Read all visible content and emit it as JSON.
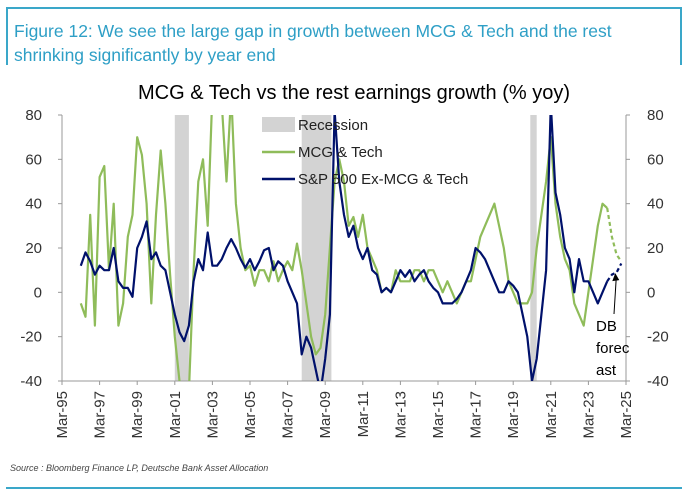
{
  "figure_title": "Figure 12: We see the large gap in growth between MCG & Tech and the rest shrinking significantly by year end",
  "source": "Source : Bloomberg Finance LP, Deutsche Bank Asset Allocation",
  "chart_data": {
    "type": "line",
    "title": "MCG & Tech vs the rest earnings growth (% yoy)",
    "xlabel": "",
    "ylabel": "",
    "ylim": [
      -40,
      80
    ],
    "yticks": [
      "80",
      "60",
      "40",
      "20",
      "0",
      "-20",
      "-40"
    ],
    "ytick_values": [
      80,
      60,
      40,
      20,
      0,
      -20,
      -40
    ],
    "xlim": [
      1995.17,
      2025.17
    ],
    "xticks": [
      "Mar-95",
      "Mar-97",
      "Mar-99",
      "Mar-01",
      "Mar-03",
      "Mar-05",
      "Mar-07",
      "Mar-09",
      "Mar-11",
      "Mar-13",
      "Mar-15",
      "Mar-17",
      "Mar-19",
      "Mar-21",
      "Mar-23",
      "Mar-25"
    ],
    "xtick_values": [
      1995.17,
      1997.17,
      1999.17,
      2001.17,
      2003.17,
      2005.17,
      2007.17,
      2009.17,
      2011.17,
      2013.17,
      2015.17,
      2017.17,
      2019.17,
      2021.17,
      2023.17,
      2025.17
    ],
    "grid": false,
    "legend_position": "top-center",
    "recessions": [
      {
        "start": 2001.17,
        "end": 2001.92
      },
      {
        "start": 2007.92,
        "end": 2009.5
      },
      {
        "start": 2020.08,
        "end": 2020.42
      }
    ],
    "annotation": {
      "text_lines": [
        "DB",
        "forec",
        "ast"
      ],
      "arrow_x": 2024.6,
      "arrow_y": 10
    },
    "series": [
      {
        "name": "Recession",
        "kind": "area",
        "color": "#d3d3d3"
      },
      {
        "name": "MCG & Tech",
        "kind": "line",
        "color": "#8fbc5a",
        "x": [
          1996.17,
          1996.42,
          1996.67,
          1996.92,
          1997.17,
          1997.42,
          1997.67,
          1997.92,
          1998.17,
          1998.42,
          1998.67,
          1998.92,
          1999.17,
          1999.42,
          1999.67,
          1999.92,
          2000.17,
          2000.42,
          2000.67,
          2000.92,
          2001.17,
          2001.42,
          2001.67,
          2001.92,
          2002.17,
          2002.42,
          2002.67,
          2002.92,
          2003.17,
          2003.42,
          2003.67,
          2003.92,
          2004.17,
          2004.42,
          2004.67,
          2004.92,
          2005.17,
          2005.42,
          2005.67,
          2005.92,
          2006.17,
          2006.42,
          2006.67,
          2006.92,
          2007.17,
          2007.42,
          2007.67,
          2007.92,
          2008.17,
          2008.42,
          2008.67,
          2008.92,
          2009.17,
          2009.42,
          2009.67,
          2009.92,
          2010.17,
          2010.42,
          2010.67,
          2010.92,
          2011.17,
          2011.42,
          2011.67,
          2011.92,
          2012.17,
          2012.42,
          2012.67,
          2012.92,
          2013.17,
          2013.42,
          2013.67,
          2013.92,
          2014.17,
          2014.42,
          2014.67,
          2014.92,
          2015.17,
          2015.42,
          2015.67,
          2015.92,
          2016.17,
          2016.42,
          2016.67,
          2016.92,
          2017.17,
          2017.42,
          2017.67,
          2017.92,
          2018.17,
          2018.42,
          2018.67,
          2018.92,
          2019.17,
          2019.42,
          2019.67,
          2019.92,
          2020.17,
          2020.42,
          2020.67,
          2020.92,
          2021.17,
          2021.42,
          2021.67,
          2021.92,
          2022.17,
          2022.42,
          2022.67,
          2022.92,
          2023.17,
          2023.42,
          2023.67,
          2023.92,
          2024.17
        ],
        "values": [
          -5,
          -11,
          35,
          -15,
          52,
          57,
          10,
          40,
          -15,
          -5,
          25,
          35,
          70,
          62,
          40,
          -5,
          35,
          64,
          40,
          8,
          -20,
          -40,
          -45,
          -45,
          10,
          50,
          60,
          30,
          90,
          100,
          85,
          50,
          90,
          40,
          20,
          10,
          12,
          3,
          10,
          10,
          5,
          14,
          5,
          10,
          14,
          10,
          22,
          10,
          -5,
          -20,
          -28,
          -25,
          -10,
          20,
          50,
          60,
          50,
          30,
          34,
          25,
          35,
          20,
          15,
          10,
          0,
          2,
          0,
          10,
          5,
          5,
          5,
          10,
          10,
          5,
          10,
          10,
          5,
          0,
          5,
          0,
          -5,
          0,
          5,
          5,
          15,
          25,
          30,
          35,
          40,
          30,
          20,
          5,
          0,
          -5,
          -5,
          -5,
          0,
          20,
          35,
          50,
          70,
          40,
          25,
          15,
          10,
          -5,
          -10,
          -15,
          0,
          15,
          30,
          40,
          38
        ]
      },
      {
        "name": "S&P 500 Ex-MCG & Tech",
        "kind": "line",
        "color": "#00116b",
        "x": [
          1996.17,
          1996.42,
          1996.67,
          1996.92,
          1997.17,
          1997.42,
          1997.67,
          1997.92,
          1998.17,
          1998.42,
          1998.67,
          1998.92,
          1999.17,
          1999.42,
          1999.67,
          1999.92,
          2000.17,
          2000.42,
          2000.67,
          2000.92,
          2001.17,
          2001.42,
          2001.67,
          2001.92,
          2002.17,
          2002.42,
          2002.67,
          2002.92,
          2003.17,
          2003.42,
          2003.67,
          2003.92,
          2004.17,
          2004.42,
          2004.67,
          2004.92,
          2005.17,
          2005.42,
          2005.67,
          2005.92,
          2006.17,
          2006.42,
          2006.67,
          2006.92,
          2007.17,
          2007.42,
          2007.67,
          2007.92,
          2008.17,
          2008.42,
          2008.67,
          2008.92,
          2009.17,
          2009.42,
          2009.67,
          2009.92,
          2010.17,
          2010.42,
          2010.67,
          2010.92,
          2011.17,
          2011.42,
          2011.67,
          2011.92,
          2012.17,
          2012.42,
          2012.67,
          2012.92,
          2013.17,
          2013.42,
          2013.67,
          2013.92,
          2014.17,
          2014.42,
          2014.67,
          2014.92,
          2015.17,
          2015.42,
          2015.67,
          2015.92,
          2016.17,
          2016.42,
          2016.67,
          2016.92,
          2017.17,
          2017.42,
          2017.67,
          2017.92,
          2018.17,
          2018.42,
          2018.67,
          2018.92,
          2019.17,
          2019.42,
          2019.67,
          2019.92,
          2020.17,
          2020.42,
          2020.67,
          2020.92,
          2021.17,
          2021.42,
          2021.67,
          2021.92,
          2022.17,
          2022.42,
          2022.67,
          2022.92,
          2023.17,
          2023.42,
          2023.67,
          2023.92,
          2024.17
        ],
        "values": [
          12,
          18,
          14,
          8,
          12,
          10,
          10,
          20,
          5,
          2,
          2,
          -2,
          20,
          25,
          32,
          15,
          18,
          12,
          10,
          0,
          -10,
          -18,
          -22,
          -15,
          5,
          15,
          10,
          27,
          12,
          12,
          15,
          20,
          24,
          20,
          15,
          11,
          15,
          10,
          14,
          19,
          20,
          10,
          14,
          12,
          5,
          0,
          -5,
          -28,
          -20,
          -25,
          -35,
          -45,
          -30,
          -10,
          82,
          50,
          35,
          25,
          30,
          20,
          15,
          20,
          10,
          8,
          0,
          2,
          0,
          5,
          10,
          7,
          10,
          5,
          8,
          10,
          5,
          2,
          0,
          -5,
          -5,
          -5,
          -3,
          0,
          5,
          10,
          20,
          18,
          15,
          10,
          5,
          0,
          0,
          5,
          3,
          0,
          -10,
          -20,
          -40,
          -30,
          -10,
          10,
          85,
          45,
          35,
          20,
          15,
          0,
          15,
          5,
          5,
          0,
          -5,
          0,
          5
        ]
      },
      {
        "name": "MCG & Tech forecast",
        "kind": "dashed",
        "color": "#8fbc5a",
        "x": [
          2024.17,
          2024.42,
          2024.67,
          2024.92
        ],
        "values": [
          38,
          25,
          17,
          14
        ]
      },
      {
        "name": "S&P 500 Ex-MCG & Tech forecast",
        "kind": "dashed",
        "color": "#00116b",
        "x": [
          2024.17,
          2024.42,
          2024.67,
          2024.92
        ],
        "values": [
          5,
          8,
          9,
          13
        ]
      }
    ]
  }
}
